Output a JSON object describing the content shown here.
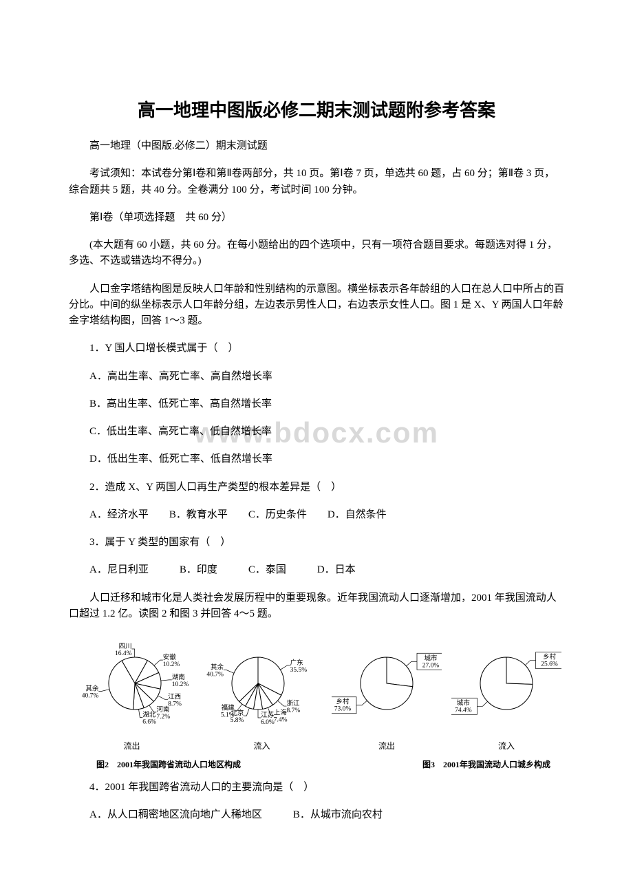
{
  "title": "高一地理中图版必修二期末测试题附参考答案",
  "watermark": "www.bdocx.com",
  "paragraphs": {
    "p1": "高一地理（中图版.必修二）期末测试题",
    "p2": "考试须知：本试卷分第Ⅰ卷和第Ⅱ卷两部分，共 10 页。第Ⅰ卷 7 页，单选共 60 题，占 60 分；第Ⅱ卷 3 页，综合题共 5 题，共 40 分。全卷满分 100 分，考试时间 100 分钟。",
    "p3": "第Ⅰ卷（单项选择题　共 60 分）",
    "p4": "(本大题有 60 小题，共 60 分。在每小题给出的四个选项中，只有一项符合题目要求。每题选对得 1 分，多选、不选或错选均不得分。)",
    "p5": "人口金字塔结构图是反映人口年龄和性别结构的示意图。横坐标表示各年龄组的人口在总人口中所占的百分比。中间的纵坐标表示人口年龄分组，左边表示男性人口，右边表示女性人口。图 1 是 X、Y 两国人口年龄金字塔结构图，回答 1～3 题。",
    "q1": "1．Y 国人口增长模式属于（　）",
    "q1a": "A．高出生率、高死亡率、高自然增长率",
    "q1b": "B．高出生率、低死亡率、高自然增长率",
    "q1c": "C．低出生率、高死亡率、低自然增长率",
    "q1d": "D．低出生率、低死亡率、低自然增长率",
    "q2": "2．造成 X、Y 两国人口再生产类型的根本差异是（　）",
    "q2opts": "A．经济水平　　B．教育水平　　C．历史条件　　D．自然条件",
    "q3": "3．属于 Y 类型的国家有（　）",
    "q3opts": "A．尼日利亚　　　B．印度　　　C．泰国　　　D．日本",
    "p6": "人口迁移和城市化是人类社会发展历程中的重要现象。近年我国流动人口逐渐增加，2001 年我国流动人口超过 1.2 亿。读图 2 和图 3 并回答 4～5 题。",
    "q4": "4．2001 年我国跨省流动人口的主要流向是（　）",
    "q4a": "A．从人口稠密地区流向地广人稀地区　　　B．从城市流向农村"
  },
  "charts": {
    "pie_out_province": {
      "type": "pie",
      "sub": "流出",
      "slices": [
        {
          "label": "四川",
          "value": 16.4,
          "pct": "16.4%"
        },
        {
          "label": "安徽",
          "value": 10.2,
          "pct": "10.2%"
        },
        {
          "label": "湖南",
          "value": 10.2,
          "pct": "10.2%"
        },
        {
          "label": "江西",
          "value": 8.7,
          "pct": "8.7%"
        },
        {
          "label": "河南",
          "value": 7.2,
          "pct": "7.2%"
        },
        {
          "label": "湖北",
          "value": 6.6,
          "pct": "6.6%"
        },
        {
          "label": "其余",
          "value": 40.7,
          "pct": "40.7%"
        }
      ],
      "fill": "#ffffff",
      "stroke": "#000000"
    },
    "pie_in_province": {
      "type": "pie",
      "sub": "流入",
      "slices": [
        {
          "label": "广东",
          "value": 35.5,
          "pct": "35.5%"
        },
        {
          "label": "浙江",
          "value": 8.7,
          "pct": "8.7%"
        },
        {
          "label": "上海",
          "value": 7.4,
          "pct": "7.4%"
        },
        {
          "label": "江苏",
          "value": 6.0,
          "pct": "6.0%"
        },
        {
          "label": "北京",
          "value": 5.8,
          "pct": "5.8%"
        },
        {
          "label": "福建",
          "value": 5.1,
          "pct": "5.1%"
        },
        {
          "label": "其余",
          "value": 40.7,
          "pct": "40.7%"
        }
      ],
      "fill": "#ffffff",
      "stroke": "#000000"
    },
    "pie_out_urban": {
      "type": "pie",
      "sub": "流出",
      "slices": [
        {
          "label": "城市",
          "value": 27.0,
          "pct": "27.0%"
        },
        {
          "label": "乡村",
          "value": 73.0,
          "pct": "73.0%"
        }
      ],
      "fill": "#ffffff",
      "stroke": "#000000"
    },
    "pie_in_urban": {
      "type": "pie",
      "sub": "流入",
      "slices": [
        {
          "label": "乡村",
          "value": 25.6,
          "pct": "25.6%"
        },
        {
          "label": "城市",
          "value": 74.4,
          "pct": "74.4%"
        }
      ],
      "fill": "#ffffff",
      "stroke": "#000000"
    },
    "caption2": "图2　2001年我国跨省流动人口地区构成",
    "caption3": "图3　2001年我国流动人口城乡构成"
  }
}
